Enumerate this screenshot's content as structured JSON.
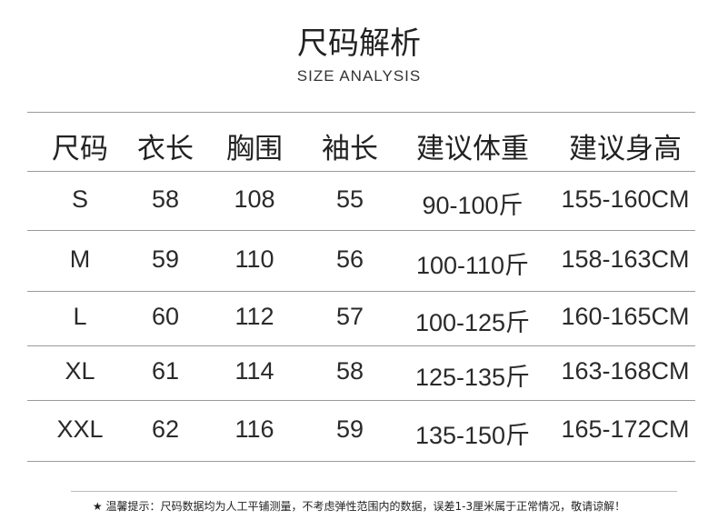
{
  "title": "尺码解析",
  "subtitle": "SIZE ANALYSIS",
  "table": {
    "headers": [
      "尺码",
      "衣长",
      "胸围",
      "袖长",
      "建议体重",
      "建议身高"
    ],
    "rows": [
      [
        "S",
        "58",
        "108",
        "55",
        "90-100斤",
        "155-160CM"
      ],
      [
        "M",
        "59",
        "110",
        "56",
        "100-110斤",
        "158-163CM"
      ],
      [
        "L",
        "60",
        "112",
        "57",
        "100-125斤",
        "160-165CM"
      ],
      [
        "XL",
        "61",
        "114",
        "58",
        "125-135斤",
        "163-168CM"
      ],
      [
        "XXL",
        "62",
        "116",
        "59",
        "135-150斤",
        "165-172CM"
      ]
    ]
  },
  "footer": "★ 温馨提示：尺码数据均为人工平铺测量，不考虑弹性范围内的数据，误差1-3厘米属于正常情况，敬请谅解！"
}
